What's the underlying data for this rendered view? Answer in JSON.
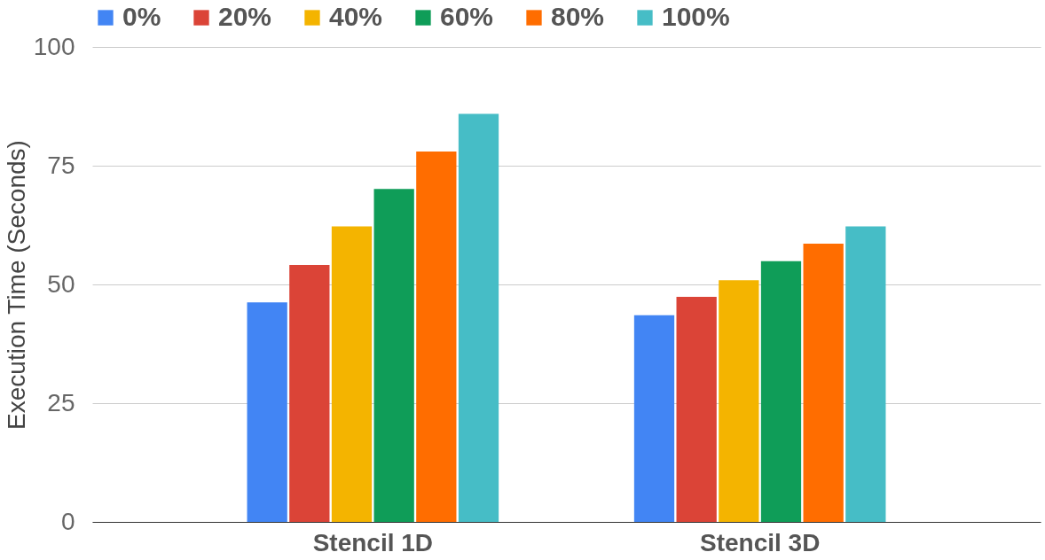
{
  "chart_data": {
    "type": "bar",
    "ylabel": "Execution Time (Seconds)",
    "categories": [
      "Stencil 1D",
      "Stencil 3D"
    ],
    "series": [
      {
        "name": "0%",
        "color": "#4285f4",
        "values": [
          46.2,
          43.5
        ]
      },
      {
        "name": "20%",
        "color": "#db4437",
        "values": [
          54.1,
          47.4
        ]
      },
      {
        "name": "40%",
        "color": "#f4b400",
        "values": [
          62.2,
          50.9
        ]
      },
      {
        "name": "60%",
        "color": "#0f9d58",
        "values": [
          70.1,
          54.9
        ]
      },
      {
        "name": "80%",
        "color": "#ff6d00",
        "values": [
          78.0,
          58.6
        ]
      },
      {
        "name": "100%",
        "color": "#46bdc6",
        "values": [
          85.9,
          62.2
        ]
      }
    ],
    "ylim": [
      0,
      100
    ],
    "yticks": [
      0,
      25,
      50,
      75,
      100
    ],
    "grid": "y",
    "legend": "top"
  }
}
